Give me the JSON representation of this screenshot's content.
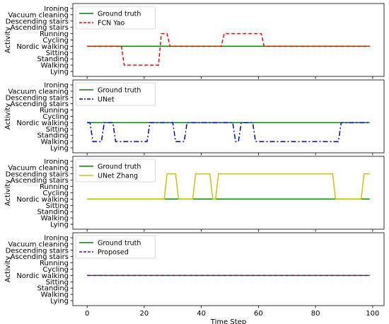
{
  "chart_data": [
    {
      "type": "line",
      "xlabel": "",
      "ylabel": "Activity",
      "xlim": [
        -5,
        104
      ],
      "categories_y": [
        "Lying",
        "Walking",
        "Standing",
        "Sitting",
        "Nordic walking",
        "Cycling",
        "Running",
        "Ascending stairs",
        "Descending stairs",
        "Vacuum cleaning",
        "Ironing"
      ],
      "legend_position": "upper-left",
      "series": [
        {
          "name": "Ground truth",
          "color": "#008000",
          "style": "solid",
          "points": [
            [
              0,
              "Nordic walking"
            ],
            [
              99,
              "Nordic walking"
            ]
          ]
        },
        {
          "name": "FCN Yao",
          "color": "#ff0000",
          "style": "dashed",
          "points": [
            [
              0,
              "Nordic walking"
            ],
            [
              12,
              "Nordic walking"
            ],
            [
              13,
              "Walking"
            ],
            [
              25,
              "Walking"
            ],
            [
              26,
              "Running"
            ],
            [
              28,
              "Running"
            ],
            [
              29,
              "Nordic walking"
            ],
            [
              47,
              "Nordic walking"
            ],
            [
              48,
              "Running"
            ],
            [
              61,
              "Running"
            ],
            [
              62,
              "Nordic walking"
            ],
            [
              99,
              "Nordic walking"
            ]
          ]
        }
      ]
    },
    {
      "type": "line",
      "xlabel": "",
      "ylabel": "Activity",
      "xlim": [
        -5,
        104
      ],
      "categories_y": [
        "Lying",
        "Walking",
        "Standing",
        "Sitting",
        "Nordic walking",
        "Cycling",
        "Running",
        "Ascending stairs",
        "Descending stairs",
        "Vacuum cleaning",
        "Ironing"
      ],
      "legend_position": "upper-left",
      "series": [
        {
          "name": "Ground truth",
          "color": "#008000",
          "style": "solid",
          "points": [
            [
              0,
              "Nordic walking"
            ],
            [
              99,
              "Nordic walking"
            ]
          ]
        },
        {
          "name": "UNet",
          "color": "#0000cc",
          "style": "dashdot",
          "points": [
            [
              0,
              "Nordic walking"
            ],
            [
              1,
              "Nordic walking"
            ],
            [
              2,
              "Walking"
            ],
            [
              5,
              "Walking"
            ],
            [
              6,
              "Nordic walking"
            ],
            [
              9,
              "Nordic walking"
            ],
            [
              10,
              "Walking"
            ],
            [
              21,
              "Walking"
            ],
            [
              22,
              "Nordic walking"
            ],
            [
              30,
              "Nordic walking"
            ],
            [
              31,
              "Walking"
            ],
            [
              34,
              "Walking"
            ],
            [
              35,
              "Nordic walking"
            ],
            [
              51,
              "Nordic walking"
            ],
            [
              52,
              "Walking"
            ],
            [
              53,
              "Walking"
            ],
            [
              54,
              "Nordic walking"
            ],
            [
              58,
              "Nordic walking"
            ],
            [
              59,
              "Walking"
            ],
            [
              88,
              "Walking"
            ],
            [
              89,
              "Nordic walking"
            ],
            [
              99,
              "Nordic walking"
            ]
          ]
        }
      ]
    },
    {
      "type": "line",
      "xlabel": "",
      "ylabel": "Activity",
      "xlim": [
        -5,
        104
      ],
      "categories_y": [
        "Lying",
        "Walking",
        "Standing",
        "Sitting",
        "Nordic walking",
        "Cycling",
        "Running",
        "Ascending stairs",
        "Descending stairs",
        "Vacuum cleaning",
        "Ironing"
      ],
      "legend_position": "upper-left",
      "series": [
        {
          "name": "Ground truth",
          "color": "#008000",
          "style": "solid",
          "points": [
            [
              0,
              "Nordic walking"
            ],
            [
              99,
              "Nordic walking"
            ]
          ]
        },
        {
          "name": "UNet Zhang",
          "color": "#c8c800",
          "style": "solid",
          "points": [
            [
              0,
              "Nordic walking"
            ],
            [
              27,
              "Nordic walking"
            ],
            [
              28,
              "Descending stairs"
            ],
            [
              31,
              "Descending stairs"
            ],
            [
              32,
              "Nordic walking"
            ],
            [
              37,
              "Nordic walking"
            ],
            [
              38,
              "Descending stairs"
            ],
            [
              43,
              "Descending stairs"
            ],
            [
              44,
              "Nordic walking"
            ],
            [
              45,
              "Nordic walking"
            ],
            [
              46,
              "Descending stairs"
            ],
            [
              86,
              "Descending stairs"
            ],
            [
              87,
              "Nordic walking"
            ],
            [
              96,
              "Nordic walking"
            ],
            [
              97,
              "Descending stairs"
            ],
            [
              99,
              "Descending stairs"
            ]
          ]
        }
      ]
    },
    {
      "type": "line",
      "xlabel": "Time Step",
      "ylabel": "Activity",
      "xlim": [
        -5,
        104
      ],
      "xticks": [
        0,
        20,
        40,
        60,
        80,
        100
      ],
      "categories_y": [
        "Lying",
        "Walking",
        "Standing",
        "Sitting",
        "Nordic walking",
        "Cycling",
        "Running",
        "Ascending stairs",
        "Descending stairs",
        "Vacuum cleaning",
        "Ironing"
      ],
      "legend_position": "upper-left",
      "series": [
        {
          "name": "Ground truth",
          "color": "#008000",
          "style": "solid",
          "points": [
            [
              0,
              "Nordic walking"
            ],
            [
              99,
              "Nordic walking"
            ]
          ]
        },
        {
          "name": "Proposed",
          "color": "#800080",
          "style": "dashed",
          "points": [
            [
              0,
              "Nordic walking"
            ],
            [
              99,
              "Nordic walking"
            ]
          ]
        }
      ]
    }
  ]
}
